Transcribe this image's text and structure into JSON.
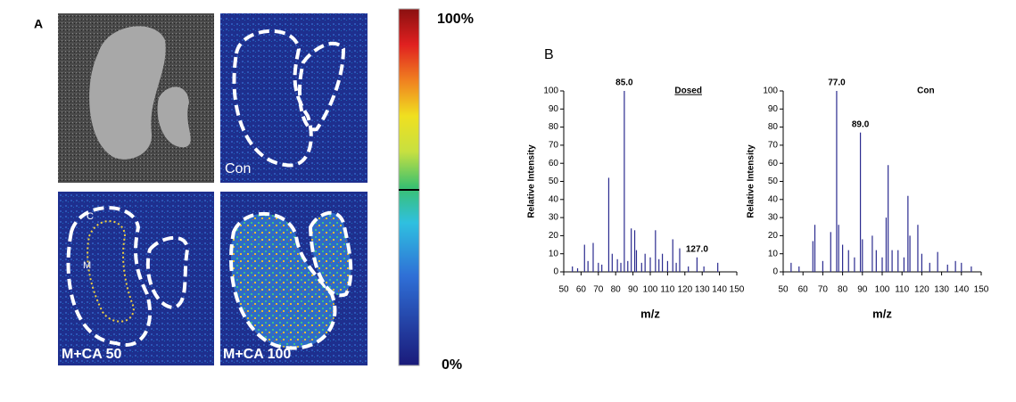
{
  "panel_a": {
    "label": "A",
    "images": [
      "Con",
      "M+CA 50",
      "M+CA 100"
    ],
    "regions": [
      "C",
      "M"
    ],
    "scale_max": "100%",
    "scale_min": "0%"
  },
  "panel_b": {
    "label": "B"
  },
  "chart_data": [
    {
      "type": "bar",
      "title": "Dosed",
      "xlabel": "m/z",
      "ylabel": "Relative Intensity",
      "color": "#2b2b8f",
      "x": [
        55,
        58,
        62,
        64,
        67,
        70,
        72,
        76,
        78,
        81,
        83,
        85,
        87,
        89,
        91,
        92,
        95,
        97,
        100,
        103,
        105,
        107,
        110,
        113,
        115,
        117,
        122,
        127,
        131,
        139
      ],
      "values": [
        3,
        2,
        15,
        6,
        16,
        5,
        4,
        52,
        10,
        7,
        5,
        100,
        6,
        24,
        23,
        12,
        5,
        10,
        8,
        23,
        7,
        10,
        6,
        18,
        5,
        13,
        3,
        8,
        3,
        5
      ],
      "annotations": [
        {
          "x": 85,
          "y": 100,
          "label": "85.0"
        },
        {
          "x": 127,
          "y": 8,
          "label": "127.0"
        }
      ],
      "xlim": [
        50,
        150
      ],
      "xticks": [
        50,
        60,
        70,
        80,
        90,
        100,
        110,
        120,
        130,
        140,
        150
      ],
      "ylim": [
        0,
        100
      ],
      "yticks": [
        0,
        10,
        20,
        30,
        40,
        50,
        60,
        70,
        80,
        90,
        100
      ]
    },
    {
      "type": "bar",
      "title": "Con",
      "xlabel": "m/z",
      "ylabel": "Relative Intensity",
      "color": "#2b2b8f",
      "x": [
        54,
        58,
        65,
        66,
        70,
        74,
        77,
        78,
        80,
        83,
        86,
        89,
        90,
        95,
        97,
        100,
        102,
        103,
        105,
        108,
        111,
        113,
        114,
        118,
        120,
        124,
        128,
        133,
        137,
        140,
        145
      ],
      "values": [
        5,
        3,
        17,
        26,
        6,
        22,
        100,
        26,
        15,
        12,
        8,
        77,
        18,
        20,
        12,
        8,
        30,
        59,
        12,
        12,
        8,
        42,
        20,
        26,
        10,
        5,
        11,
        4,
        6,
        5,
        3
      ],
      "annotations": [
        {
          "x": 77,
          "y": 100,
          "label": "77.0"
        },
        {
          "x": 89,
          "y": 77,
          "label": "89.0"
        }
      ],
      "xlim": [
        50,
        150
      ],
      "xticks": [
        50,
        60,
        70,
        80,
        90,
        100,
        110,
        120,
        130,
        140,
        150
      ],
      "ylim": [
        0,
        100
      ],
      "yticks": [
        0,
        10,
        20,
        30,
        40,
        50,
        60,
        70,
        80,
        90,
        100
      ]
    }
  ]
}
